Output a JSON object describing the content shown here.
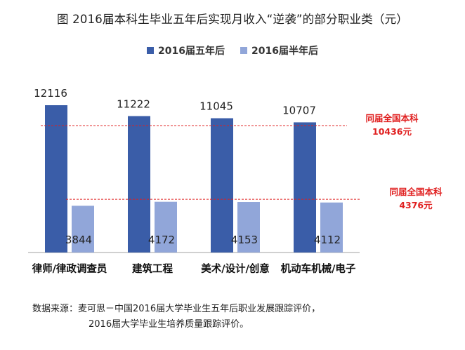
{
  "title": "图  2016届本科生毕业五年后实现月收入“逆袭”的部分职业类（元）",
  "colors": {
    "series1": "#3a5da8",
    "series2": "#91a6d9",
    "refline": "#e02020",
    "axis": "#a0a0a0"
  },
  "chart_data": {
    "type": "bar",
    "categories": [
      "律师/律政调查员",
      "建筑工程",
      "美术/设计/创意",
      "机动车机械/电子"
    ],
    "series": [
      {
        "name": "2016届五年后",
        "values": [
          12116,
          11222,
          11045,
          10707
        ]
      },
      {
        "name": "2016届半年后",
        "values": [
          3844,
          4172,
          4153,
          4112
        ]
      }
    ],
    "reference_lines": [
      {
        "label_line1": "同届全国本科",
        "label_line2": "10436元",
        "value": 10436
      },
      {
        "label_line1": "同届全国本科",
        "label_line2": "4376元",
        "value": 4376
      }
    ],
    "ylim": [
      0,
      13500
    ],
    "grid": false,
    "legend": "top-center"
  },
  "source": {
    "line1": "数据来源：麦可思－中国2016届大学毕业生五年后职业发展跟踪评价，",
    "line2": "2016届大学毕业生培养质量跟踪评价。"
  }
}
